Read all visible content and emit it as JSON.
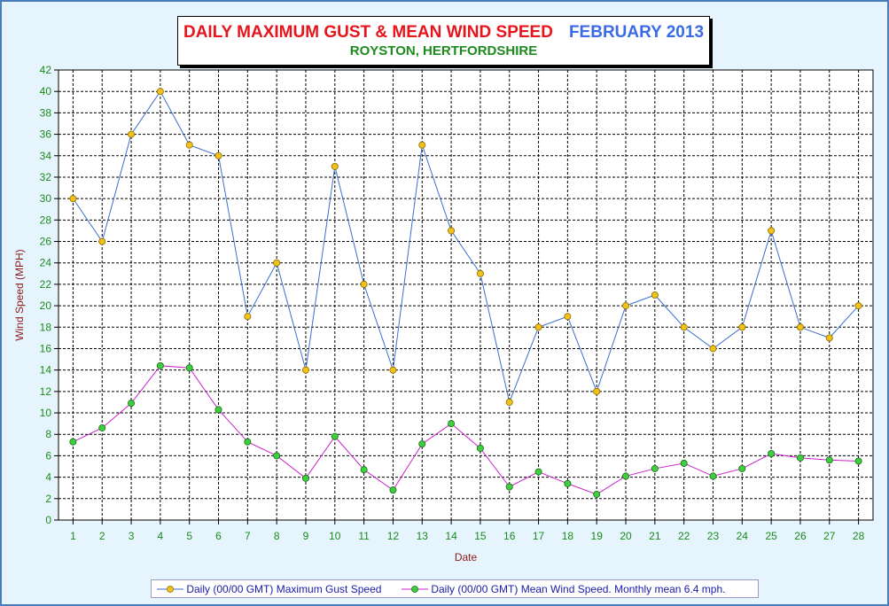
{
  "chart_data": {
    "type": "line",
    "title": "DAILY MAXIMUM GUST & MEAN WIND SPEED",
    "date_label": "FEBRUARY 2013",
    "subtitle": "ROYSTON, HERTFORDSHIRE",
    "xlabel": "Date",
    "ylabel": "Wind Speed (MPH)",
    "ylim": [
      0,
      42
    ],
    "ytick_step": 2,
    "grid": true,
    "legend_position": "bottom",
    "categories": [
      "1",
      "2",
      "3",
      "4",
      "5",
      "6",
      "7",
      "8",
      "9",
      "10",
      "11",
      "12",
      "13",
      "14",
      "15",
      "16",
      "17",
      "18",
      "19",
      "20",
      "21",
      "22",
      "23",
      "24",
      "25",
      "26",
      "27",
      "28"
    ],
    "series": [
      {
        "name": "Daily (00/00 GMT) Maximum Gust Speed",
        "line_color": "#3a6fcf",
        "marker_color": "#f2c21a",
        "values": [
          30,
          26,
          36,
          40,
          35,
          34,
          19,
          24,
          14,
          33,
          22,
          14,
          35,
          27,
          23,
          11,
          18,
          19,
          12,
          20,
          21,
          18,
          16,
          18,
          27,
          18,
          17,
          20
        ]
      },
      {
        "name": "Daily (00/00 GMT) Mean Wind Speed. Monthly mean 6.4 mph.",
        "line_color": "#cc22cc",
        "marker_color": "#3ecf3e",
        "values": [
          7.3,
          8.6,
          10.9,
          14.4,
          14.2,
          10.3,
          7.3,
          6.0,
          3.9,
          7.8,
          4.7,
          2.8,
          7.1,
          9.0,
          6.7,
          3.1,
          4.5,
          3.4,
          2.4,
          4.1,
          4.8,
          5.3,
          4.1,
          4.8,
          6.2,
          5.8,
          5.6,
          5.5
        ]
      }
    ]
  }
}
